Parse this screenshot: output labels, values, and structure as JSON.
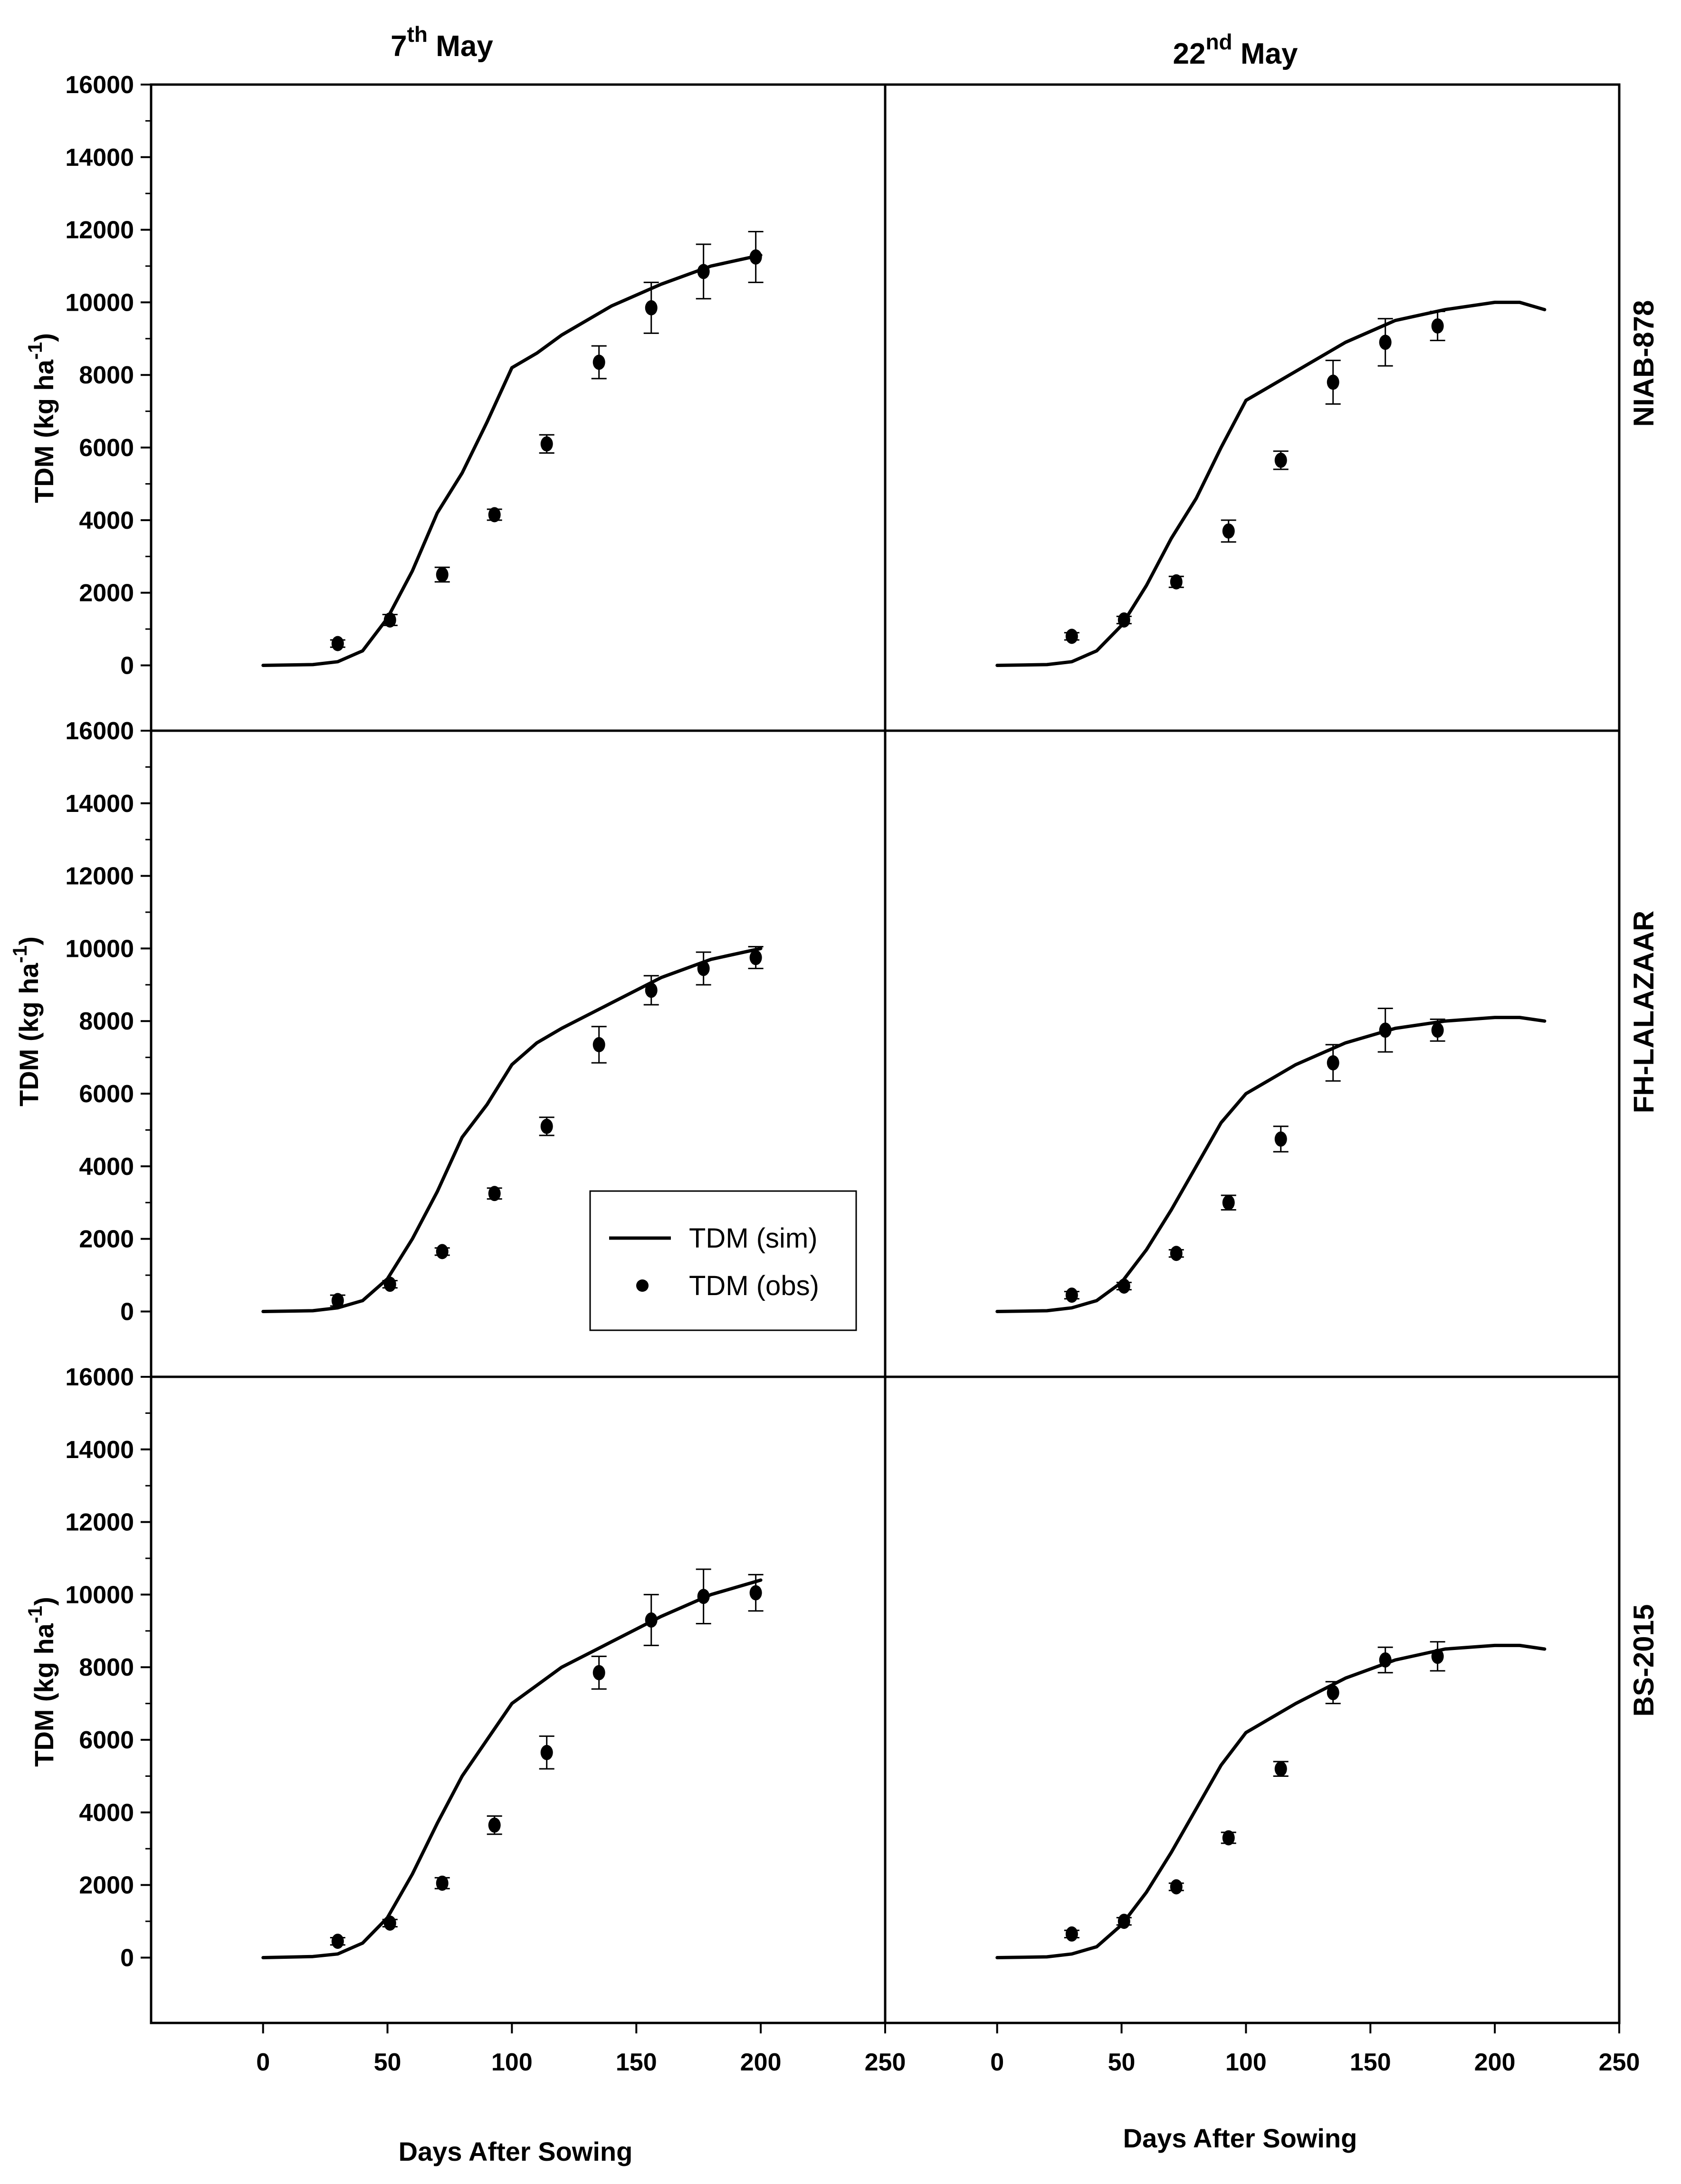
{
  "figure": {
    "columns": [
      {
        "base": "7",
        "sup": "th",
        "rest": " May"
      },
      {
        "base": "22",
        "sup": "nd",
        "rest": " May"
      }
    ],
    "rows": [
      "NIAB-878",
      "FH-LALAZAAR",
      "BS-2015"
    ],
    "xlabel": "Days After Sowing",
    "ylabel": {
      "main": "TDM (kg ha",
      "sup": "-1",
      "close": ")"
    },
    "legend": {
      "sim": "TDM (sim)",
      "obs": "TDM (obs)"
    }
  },
  "chart_data": {
    "type": "line+scatter",
    "xlim": [
      -45,
      250
    ],
    "ylim": [
      -1800,
      16000
    ],
    "xticks": [
      0,
      50,
      100,
      150,
      200,
      250
    ],
    "xtick_labels": [
      "0",
      "50",
      "100",
      "150",
      "200",
      "250"
    ],
    "yticks": [
      0,
      2000,
      4000,
      6000,
      8000,
      10000,
      12000,
      14000,
      16000
    ],
    "ytick_labels": [
      "0",
      "2000",
      "4000",
      "6000",
      "8000",
      "10000",
      "12000",
      "14000",
      "16000"
    ],
    "panels": [
      {
        "row": "NIAB-878",
        "column": "7th May",
        "sim": {
          "x": [
            0,
            20,
            30,
            40,
            50,
            60,
            70,
            80,
            90,
            100,
            110,
            120,
            140,
            160,
            180,
            200
          ],
          "y": [
            0,
            20,
            100,
            400,
            1300,
            2600,
            4200,
            5300,
            6700,
            8200,
            8600,
            9100,
            9900,
            10500,
            11000,
            11300
          ]
        },
        "obs": {
          "x": [
            30,
            51,
            72,
            93,
            114,
            135,
            156,
            177,
            198
          ],
          "y": [
            600,
            1250,
            2500,
            4150,
            6100,
            8350,
            9850,
            10850,
            11250
          ],
          "err": [
            100,
            150,
            200,
            150,
            250,
            450,
            700,
            750,
            700
          ]
        }
      },
      {
        "row": "NIAB-878",
        "column": "22nd May",
        "sim": {
          "x": [
            0,
            20,
            30,
            40,
            50,
            60,
            70,
            80,
            90,
            100,
            110,
            120,
            140,
            160,
            180,
            200,
            210,
            220
          ],
          "y": [
            0,
            20,
            100,
            400,
            1100,
            2200,
            3500,
            4600,
            6000,
            7300,
            7700,
            8100,
            8900,
            9500,
            9800,
            10000,
            10000,
            9800
          ]
        },
        "obs": {
          "x": [
            30,
            51,
            72,
            93,
            114,
            135,
            156,
            177
          ],
          "y": [
            800,
            1250,
            2300,
            3700,
            5650,
            7800,
            8900,
            9350
          ],
          "err": [
            100,
            100,
            150,
            300,
            250,
            600,
            650,
            400
          ]
        }
      },
      {
        "row": "FH-LALAZAAR",
        "column": "7th May",
        "sim": {
          "x": [
            0,
            20,
            30,
            40,
            50,
            60,
            70,
            80,
            90,
            100,
            110,
            120,
            140,
            160,
            180,
            200
          ],
          "y": [
            0,
            20,
            100,
            300,
            900,
            2000,
            3300,
            4800,
            5700,
            6800,
            7400,
            7800,
            8500,
            9200,
            9700,
            10000
          ]
        },
        "obs": {
          "x": [
            30,
            51,
            72,
            93,
            114,
            135,
            156,
            177,
            198
          ],
          "y": [
            300,
            750,
            1650,
            3250,
            5100,
            7350,
            8850,
            9450,
            9750
          ],
          "err": [
            150,
            100,
            100,
            150,
            250,
            500,
            400,
            450,
            300
          ]
        }
      },
      {
        "row": "FH-LALAZAAR",
        "column": "22nd May",
        "sim": {
          "x": [
            0,
            20,
            30,
            40,
            50,
            60,
            70,
            80,
            90,
            100,
            110,
            120,
            140,
            160,
            180,
            200,
            210,
            220
          ],
          "y": [
            0,
            20,
            100,
            300,
            800,
            1700,
            2800,
            4000,
            5200,
            6000,
            6400,
            6800,
            7400,
            7800,
            8000,
            8100,
            8100,
            8000
          ]
        },
        "obs": {
          "x": [
            30,
            51,
            72,
            93,
            114,
            135,
            156,
            177
          ],
          "y": [
            450,
            700,
            1600,
            3000,
            4750,
            6850,
            7750,
            7750
          ],
          "err": [
            100,
            100,
            100,
            200,
            350,
            500,
            600,
            300
          ]
        }
      },
      {
        "row": "BS-2015",
        "column": "7th May",
        "sim": {
          "x": [
            0,
            20,
            30,
            40,
            50,
            60,
            70,
            80,
            90,
            100,
            110,
            120,
            140,
            160,
            180,
            200
          ],
          "y": [
            0,
            30,
            100,
            400,
            1100,
            2300,
            3700,
            5000,
            6000,
            7000,
            7500,
            8000,
            8700,
            9400,
            10000,
            10400
          ]
        },
        "obs": {
          "x": [
            30,
            51,
            72,
            93,
            114,
            135,
            156,
            177,
            198
          ],
          "y": [
            450,
            950,
            2050,
            3650,
            5650,
            7850,
            9300,
            9950,
            10050
          ],
          "err": [
            100,
            100,
            150,
            250,
            450,
            450,
            700,
            750,
            500
          ]
        }
      },
      {
        "row": "BS-2015",
        "column": "22nd May",
        "sim": {
          "x": [
            0,
            20,
            30,
            40,
            50,
            60,
            70,
            80,
            90,
            100,
            110,
            120,
            140,
            160,
            180,
            200,
            210,
            220
          ],
          "y": [
            0,
            20,
            100,
            300,
            900,
            1800,
            2900,
            4100,
            5300,
            6200,
            6600,
            7000,
            7700,
            8200,
            8500,
            8600,
            8600,
            8500
          ]
        },
        "obs": {
          "x": [
            30,
            51,
            72,
            93,
            114,
            135,
            156,
            177
          ],
          "y": [
            650,
            1000,
            1950,
            3300,
            5200,
            7300,
            8200,
            8300
          ],
          "err": [
            100,
            100,
            100,
            150,
            200,
            300,
            350,
            400
          ]
        }
      }
    ]
  }
}
